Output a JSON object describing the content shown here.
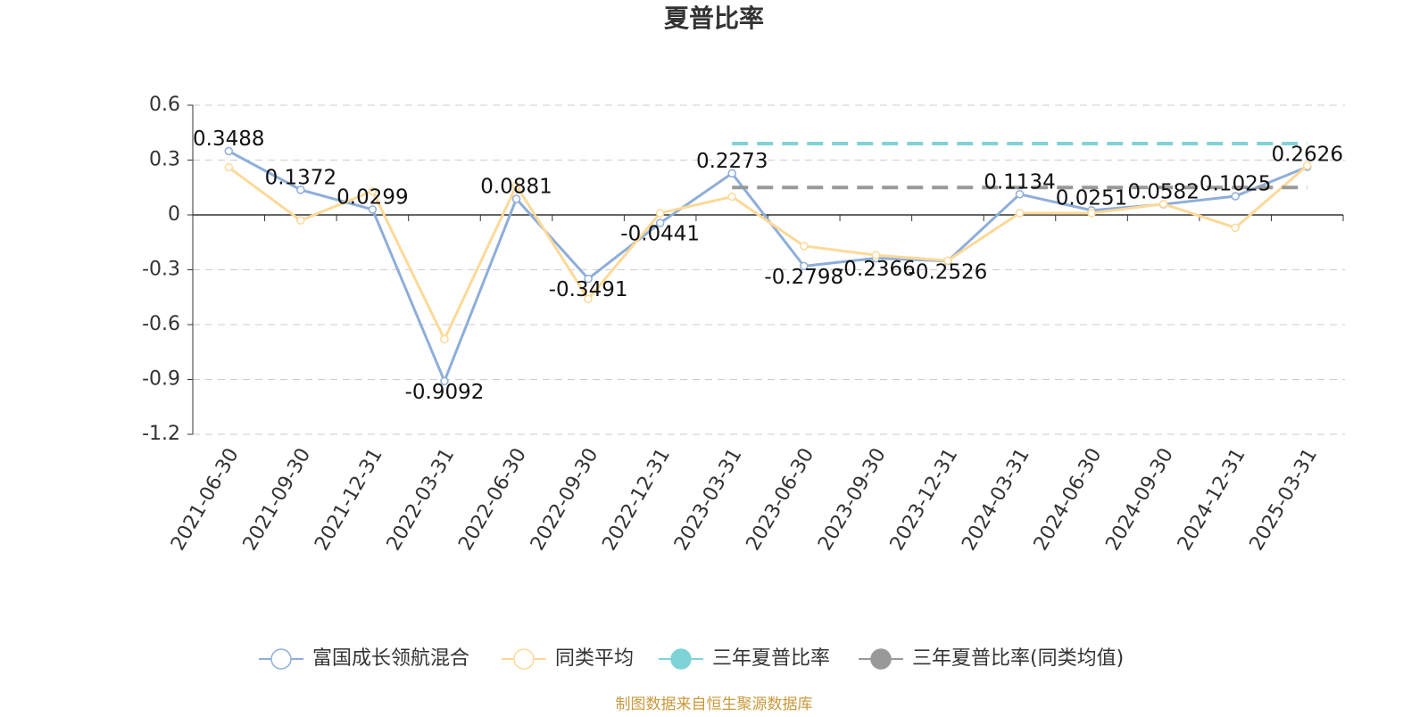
{
  "chart_data": {
    "type": "line",
    "title": "夏普比率",
    "categories": [
      "2021-06-30",
      "2021-09-30",
      "2021-12-31",
      "2022-03-31",
      "2022-06-30",
      "2022-09-30",
      "2022-12-31",
      "2023-03-31",
      "2023-06-30",
      "2023-09-30",
      "2023-12-31",
      "2024-03-31",
      "2024-06-30",
      "2024-09-30",
      "2024-12-31",
      "2025-03-31"
    ],
    "series": [
      {
        "name": "富国成长领航混合",
        "color": "#8eaed8",
        "marker": "hollow",
        "labels": true,
        "values": [
          0.3488,
          0.1372,
          0.0299,
          -0.9092,
          0.0881,
          -0.3491,
          -0.0441,
          0.2273,
          -0.2798,
          -0.2366,
          -0.2526,
          0.1134,
          0.0251,
          0.0582,
          0.1025,
          0.2626
        ]
      },
      {
        "name": "同类平均",
        "color": "#fdd998",
        "marker": "hollow",
        "values": [
          0.26,
          -0.03,
          0.13,
          -0.68,
          0.16,
          -0.46,
          0.01,
          0.1,
          -0.17,
          -0.22,
          -0.25,
          0.01,
          0.01,
          0.06,
          -0.07,
          0.27
        ]
      },
      {
        "name": "三年夏普比率",
        "color": "#7fd3d6",
        "marker": "filled",
        "dashed": true,
        "values": [
          null,
          null,
          null,
          null,
          null,
          null,
          null,
          0.39,
          0.39,
          0.39,
          0.39,
          0.39,
          0.39,
          0.39,
          0.39,
          0.39
        ]
      },
      {
        "name": "三年夏普比率(同类均值)",
        "color": "#999999",
        "marker": "filled",
        "dashed": true,
        "values": [
          null,
          null,
          null,
          null,
          null,
          null,
          null,
          0.15,
          0.15,
          0.15,
          0.15,
          0.15,
          0.15,
          0.15,
          0.15,
          0.15
        ]
      }
    ],
    "ylim": [
      -1.2,
      0.6
    ],
    "yticks": [
      0.6,
      0.3,
      0,
      -0.3,
      -0.6,
      -0.9,
      -1.2
    ],
    "grid": true,
    "legend": "bottom",
    "source": "制图数据来自恒生聚源数据库"
  }
}
